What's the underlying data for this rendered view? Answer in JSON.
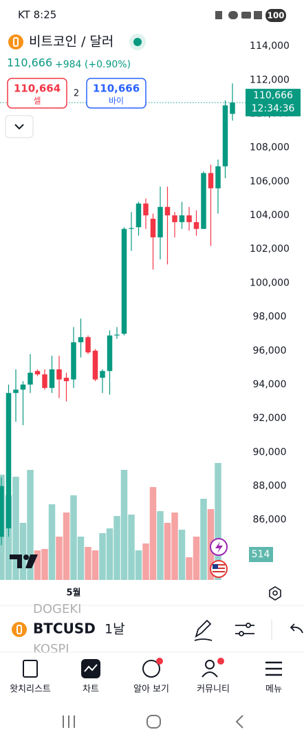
{
  "status_bar": {
    "carrier_time": "KT 8:25",
    "battery": "100"
  },
  "header": {
    "title": "비트코인 / 달러",
    "price": "110,666",
    "change": "+984 (+0.90%)"
  },
  "trade": {
    "sell_price": "110,664",
    "sell_label": "셀",
    "spread": "2",
    "buy_price": "110,666",
    "buy_label": "바이"
  },
  "chart_data": {
    "type": "candlestick",
    "categories": [
      null,
      null,
      null,
      null,
      null,
      null,
      null,
      null,
      null,
      null,
      "5월",
      null,
      null,
      null,
      null,
      null,
      null,
      null,
      null,
      null,
      null,
      null,
      null,
      null,
      null,
      null,
      null,
      null,
      null,
      null,
      null
    ],
    "open": [
      85000,
      85500,
      93500,
      93700,
      94000,
      94800,
      94600,
      93800,
      94900,
      94400,
      94300,
      96500,
      96800,
      96000,
      94400,
      94800,
      96900,
      97000,
      103200,
      103300,
      104700,
      103800,
      102700,
      104500,
      104000,
      103600,
      104000,
      103600,
      103200,
      106500,
      105600
    ],
    "high": [
      88500,
      94000,
      94900,
      94200,
      95800,
      94900,
      94900,
      95700,
      95700,
      94700,
      97400,
      97900,
      96900,
      96100,
      94900,
      97200,
      97400,
      103300,
      104200,
      104800,
      105000,
      104100,
      105700,
      105700,
      104200,
      104800,
      104500,
      104300,
      106600,
      107000,
      107300
    ],
    "low": [
      84500,
      85000,
      91800,
      91600,
      93500,
      94500,
      93700,
      93500,
      93200,
      93000,
      93800,
      95600,
      95800,
      94200,
      93500,
      93400,
      96700,
      96900,
      101900,
      102800,
      103200,
      100800,
      101400,
      101100,
      102700,
      103200,
      103100,
      102800,
      103200,
      102200,
      104100
    ],
    "close": [
      88000,
      93500,
      93700,
      94000,
      94700,
      94600,
      93800,
      94900,
      94300,
      94200,
      96500,
      96800,
      95900,
      94300,
      94800,
      96900,
      96950,
      103200,
      103250,
      104700,
      104000,
      102700,
      104500,
      104000,
      103600,
      104000,
      103600,
      103200,
      106500,
      105600,
      106900
    ],
    "last_open": 106900,
    "last_high": 110800,
    "last_low": 106200,
    "last_close": 110500,
    "final_open": 110000,
    "final_high": 111800,
    "final_low": 109600,
    "final_close": 110666,
    "volume": [
      153,
      123,
      150,
      83,
      160,
      43,
      45,
      110,
      63,
      98,
      123,
      63,
      48,
      43,
      68,
      75,
      93,
      160,
      95,
      43,
      53,
      135,
      100,
      83,
      98,
      73,
      33,
      63,
      118,
      103,
      170
    ],
    "last_volume": 0,
    "final_volume": 0,
    "ylim": [
      82450,
      114900
    ],
    "yticks": [
      {
        "value": 86000,
        "label": "86,000"
      },
      {
        "value": 88000,
        "label": "88,000"
      },
      {
        "value": 90000,
        "label": "90,000"
      },
      {
        "value": 92000,
        "label": "92,000"
      },
      {
        "value": 94000,
        "label": "94,000"
      },
      {
        "value": 96000,
        "label": "96,000"
      },
      {
        "value": 98000,
        "label": "98,000"
      },
      {
        "value": 100000,
        "label": "100,000"
      },
      {
        "value": 102000,
        "label": "102,000"
      },
      {
        "value": 104000,
        "label": "104,000"
      },
      {
        "value": 106000,
        "label": "106,000"
      },
      {
        "value": 108000,
        "label": "108,000"
      },
      {
        "value": 110000,
        "label": "110,000"
      },
      {
        "value": 112000,
        "label": "112,000"
      },
      {
        "value": 114000,
        "label": "114,000"
      }
    ],
    "last_price": {
      "value": 110666,
      "label": "110,666"
    },
    "countdown": "12:34:36",
    "volume_label": "514",
    "up_color": "#089981",
    "down_color": "#f23645",
    "volume_up_color": "#97d3cc",
    "volume_down_color": "#f5a3a3"
  },
  "toolbar": {
    "ghost_top": "DOGEKI",
    "symbol": "BTCUSD",
    "interval": "1날",
    "ghost_bottom": "KOSPI"
  },
  "nav": [
    "왓치리스트",
    "차트",
    "알아 보기",
    "커뮤니티",
    "메뉴"
  ]
}
